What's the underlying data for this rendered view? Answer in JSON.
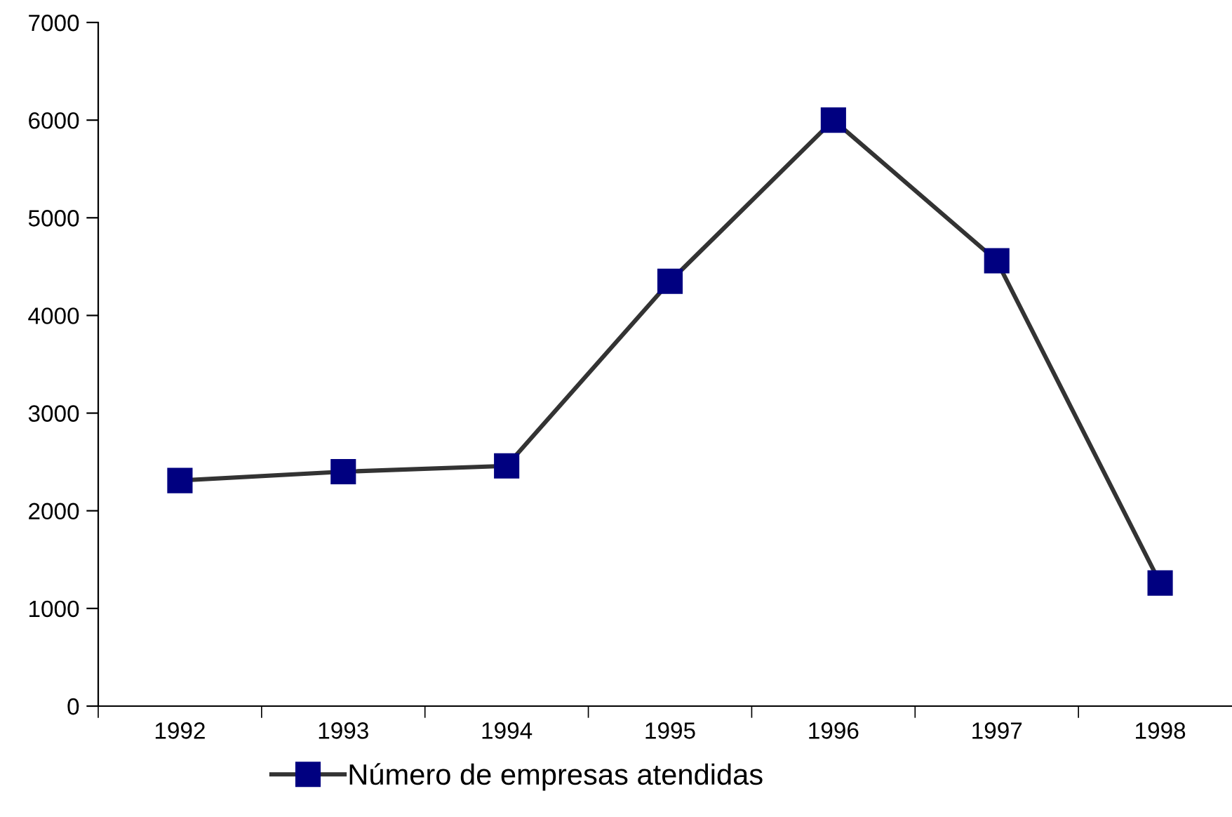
{
  "chart_data": {
    "type": "line",
    "categories": [
      "1992",
      "1993",
      "1994",
      "1995",
      "1996",
      "1997",
      "1998"
    ],
    "series": [
      {
        "name": "Número de empresas atendidas",
        "color": "#000080",
        "values": [
          2310,
          2400,
          2460,
          4350,
          6000,
          4560,
          1260
        ]
      }
    ],
    "marker": "square",
    "line_style": "solid",
    "ylim": [
      0,
      7000
    ],
    "yticks": [
      0,
      1000,
      2000,
      3000,
      4000,
      5000,
      6000,
      7000
    ],
    "grid": false,
    "legend": "bottom"
  }
}
